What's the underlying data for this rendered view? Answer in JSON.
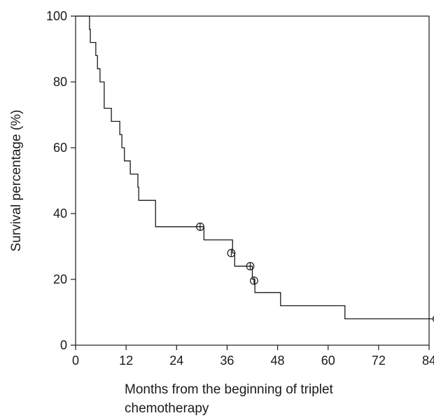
{
  "chart_data": {
    "type": "line",
    "subtype": "kaplan-meier-survival",
    "title": "",
    "xlabel_lines": [
      "Months from the beginning of triplet",
      "chemotherapy"
    ],
    "ylabel": "Survival percentage (%)",
    "xlim": [
      0,
      84
    ],
    "ylim": [
      0,
      100
    ],
    "xticks": [
      0,
      12,
      24,
      36,
      48,
      60,
      72,
      84
    ],
    "yticks": [
      0,
      20,
      40,
      60,
      80,
      100
    ],
    "grid": false,
    "legend": "none",
    "steps": [
      {
        "x": 0,
        "y": 100
      },
      {
        "x": 3.3,
        "y": 96
      },
      {
        "x": 3.5,
        "y": 92
      },
      {
        "x": 4.8,
        "y": 88
      },
      {
        "x": 5.2,
        "y": 84
      },
      {
        "x": 5.8,
        "y": 80
      },
      {
        "x": 6.8,
        "y": 72
      },
      {
        "x": 8.5,
        "y": 68
      },
      {
        "x": 10.5,
        "y": 64
      },
      {
        "x": 11.0,
        "y": 60
      },
      {
        "x": 11.6,
        "y": 56
      },
      {
        "x": 13.0,
        "y": 52
      },
      {
        "x": 14.8,
        "y": 48
      },
      {
        "x": 15.0,
        "y": 44
      },
      {
        "x": 19.0,
        "y": 36
      },
      {
        "x": 30.5,
        "y": 32
      },
      {
        "x": 37.3,
        "y": 28
      },
      {
        "x": 37.8,
        "y": 24
      },
      {
        "x": 42.0,
        "y": 20
      },
      {
        "x": 42.6,
        "y": 16
      },
      {
        "x": 48.7,
        "y": 12
      },
      {
        "x": 64.0,
        "y": 8
      }
    ],
    "end": {
      "x": 87.3,
      "y": 0
    },
    "censored": [
      {
        "x": 29.6,
        "y": 36
      },
      {
        "x": 37.0,
        "y": 28
      },
      {
        "x": 41.5,
        "y": 24
      },
      {
        "x": 42.4,
        "y": 19.6
      },
      {
        "x": 85.8,
        "y": 8
      },
      {
        "x": 87.3,
        "y": 8
      }
    ]
  }
}
